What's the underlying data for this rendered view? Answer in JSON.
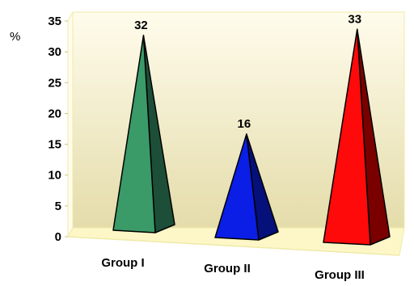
{
  "chart_data": {
    "type": "bar",
    "style": "3d-pyramid",
    "categories": [
      "Group I",
      "Group II",
      "Group III"
    ],
    "values": [
      32,
      16,
      33
    ],
    "data_labels": [
      "32",
      "16",
      "33"
    ],
    "ylabel": "%",
    "ylim": [
      0,
      35
    ],
    "yticks": [
      "0",
      "5",
      "10",
      "15",
      "20",
      "25",
      "30",
      "35"
    ],
    "grid": false,
    "legend": "none",
    "colors": {
      "Group I": {
        "front": "#3a9a68",
        "side": "#1d4f38"
      },
      "Group II": {
        "front": "#0a1ee6",
        "side": "#05107a"
      },
      "Group III": {
        "front": "#ff0a0a",
        "side": "#7a0000"
      },
      "wall": [
        "#fffcec",
        "#e4dcaa"
      ],
      "floor": "#fdf7c8",
      "frame": "#f0eaa8"
    }
  }
}
